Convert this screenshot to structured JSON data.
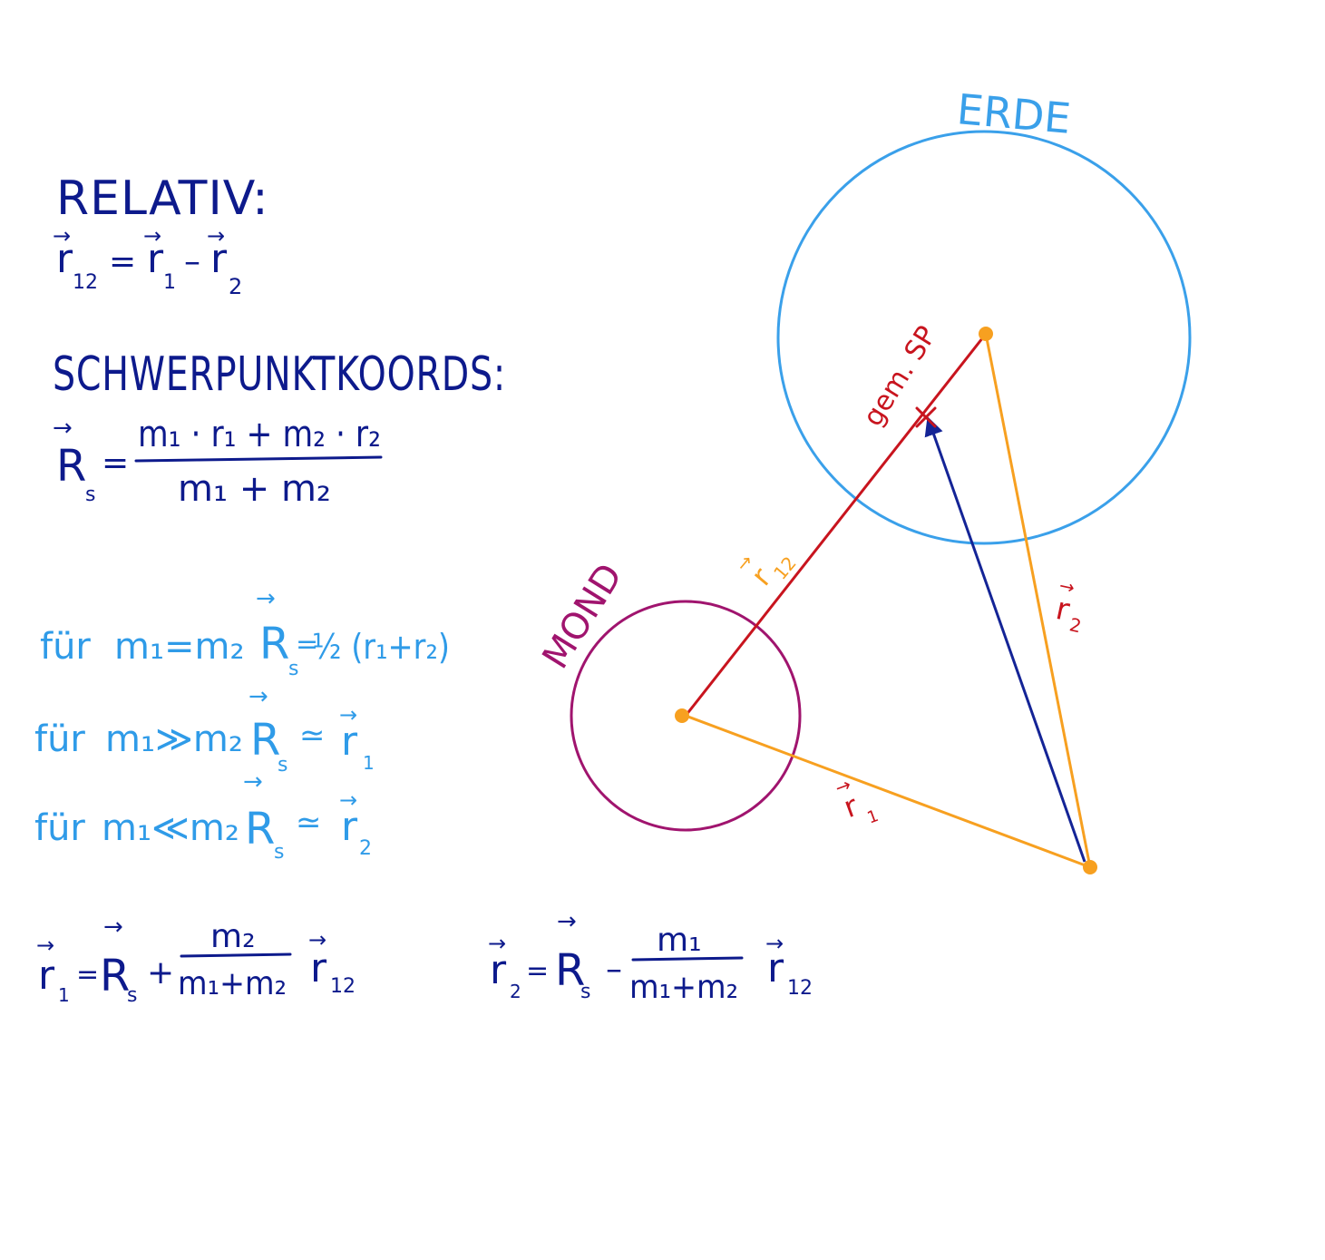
{
  "colors": {
    "ink_dark": "#0d1a8c",
    "ink_light": "#2f9be8",
    "erde": "#3aa0ea",
    "mond": "#a0146e",
    "orange": "#f7a020",
    "red": "#c8141e",
    "navy": "#142496"
  },
  "left": {
    "relativ_title": "RELATIV:",
    "relativ_eq": {
      "lhs": "r",
      "lhs_sub": "12",
      "eq": "=",
      "a": "r",
      "a_sub": "1",
      "op": "–",
      "b": "r",
      "b_sub": "2"
    },
    "schwer_title": "SCHWERPUNKTKOORDS:",
    "rs": {
      "lhs": "R",
      "lhs_sub": "s",
      "eq": "=",
      "num": "m₁ · r₁ + m₂ · r₂",
      "den": "m₁ + m₂"
    },
    "cases": [
      {
        "prefix": "für",
        "cond": "m₁=m₂",
        "lhs": "R",
        "lhs_sub": "s",
        "rel": "=",
        "rhs": "½ (r₁+r₂)"
      },
      {
        "prefix": "für",
        "cond": "m₁≫m₂",
        "lhs": "R",
        "lhs_sub": "s",
        "rel": "≃",
        "rhs": "r",
        "rhs_sub": "1"
      },
      {
        "prefix": "für",
        "cond": "m₁≪m₂",
        "lhs": "R",
        "lhs_sub": "s",
        "rel": "≃",
        "rhs": "r",
        "rhs_sub": "2"
      }
    ],
    "r1_eq": {
      "lhs": "r",
      "lhs_sub": "1",
      "eq": "=",
      "R": "R",
      "R_sub": "s",
      "op": "+",
      "num": "m₂",
      "den": "m₁+m₂",
      "tail": "r",
      "tail_sub": "12"
    },
    "r2_eq": {
      "lhs": "r",
      "lhs_sub": "2",
      "eq": "=",
      "R": "R",
      "R_sub": "s",
      "op": "–",
      "num": "m₁",
      "den": "m₁+m₂",
      "tail": "r",
      "tail_sub": "12"
    }
  },
  "diagram": {
    "erde_label": "ERDE",
    "mond_label": "MOND",
    "sp_label": "gem. SP",
    "r12_label": {
      "base": "r",
      "sub": "12"
    },
    "r1_label": {
      "base": "r",
      "sub": "1"
    },
    "r2_label": {
      "base": "r",
      "sub": "2"
    },
    "arrow_glyph": "→"
  }
}
